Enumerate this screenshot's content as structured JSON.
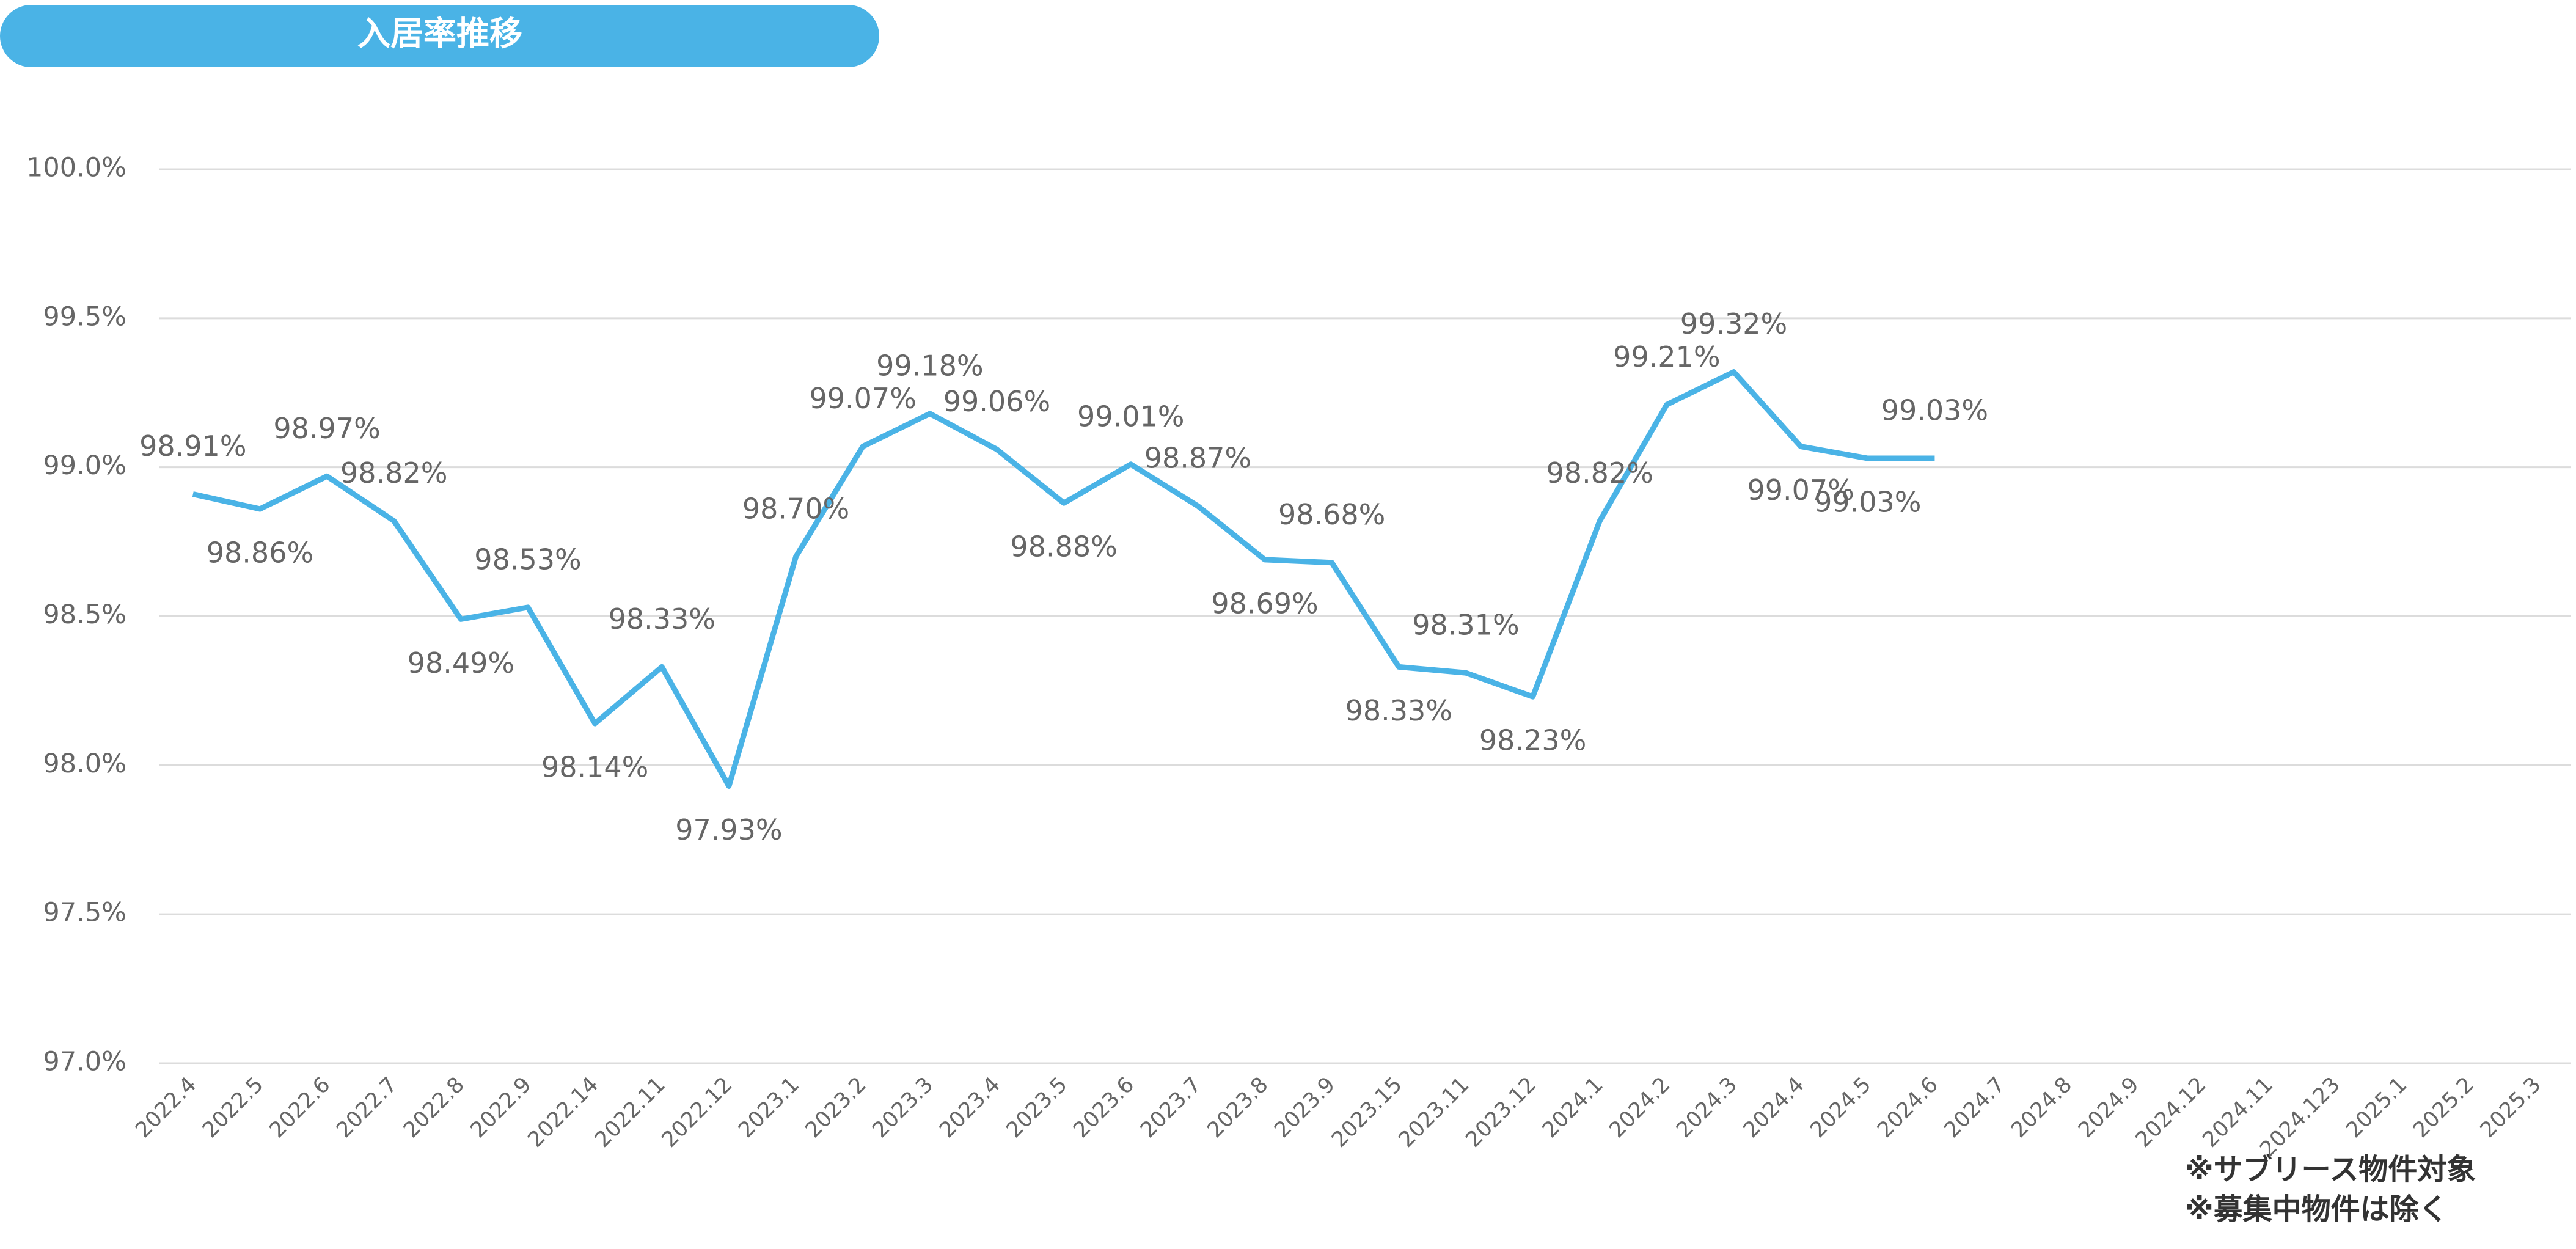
{
  "chart_data": {
    "type": "line",
    "title": "入居率推移",
    "categories": [
      "2022.4",
      "2022.5",
      "2022.6",
      "2022.7",
      "2022.8",
      "2022.9",
      "2022.14",
      "2022.11",
      "2022.12",
      "2023.1",
      "2023.2",
      "2023.3",
      "2023.4",
      "2023.5",
      "2023.6",
      "2023.7",
      "2023.8",
      "2023.9",
      "2023.15",
      "2023.11",
      "2023.12",
      "2024.1",
      "2024.2",
      "2024.3",
      "2024.4",
      "2024.5",
      "2024.6",
      "2024.7",
      "2024.8",
      "2024.9",
      "2024.12",
      "2024.11",
      "2024.123",
      "2025.1",
      "2025.2",
      "2025.3"
    ],
    "series": [
      {
        "name": "入居率",
        "color": "#4ab3e6",
        "values": [
          98.91,
          98.86,
          98.97,
          98.82,
          98.49,
          98.53,
          98.14,
          98.33,
          97.93,
          98.7,
          99.07,
          99.18,
          99.06,
          98.88,
          99.01,
          98.87,
          98.69,
          98.68,
          98.33,
          98.31,
          98.23,
          98.82,
          99.21,
          99.32,
          99.07,
          99.03,
          99.03,
          null,
          null,
          null,
          null,
          null,
          null,
          null,
          null,
          null
        ],
        "value_labels": [
          "98.91%",
          "98.86%",
          "98.97%",
          "98.82%",
          "98.49%",
          "98.53%",
          "98.14%",
          "98.33%",
          "97.93%",
          "98.70%",
          "99.07%",
          "99.18%",
          "99.06%",
          "98.88%",
          "99.01%",
          "98.87%",
          "98.69%",
          "98.68%",
          "98.33%",
          "98.31%",
          "98.23%",
          "98.82%",
          "99.21%",
          "99.32%",
          "99.07%",
          "99.03%",
          "99.03%",
          null,
          null,
          null,
          null,
          null,
          null,
          null,
          null,
          null
        ]
      }
    ],
    "ylim": [
      97,
      100
    ],
    "yticks": [
      {
        "value": 97,
        "label": "97.0%"
      },
      {
        "value": 97.5,
        "label": "97.5%"
      },
      {
        "value": 98,
        "label": "98.0%"
      },
      {
        "value": 98.5,
        "label": "98.5%"
      },
      {
        "value": 99,
        "label": "99.0%"
      },
      {
        "value": 99.5,
        "label": "99.5%"
      },
      {
        "value": 100,
        "label": "100.0%"
      }
    ],
    "grid": true,
    "annotations": [
      "※サブリース物件対象",
      "※募集中物件は除く"
    ]
  }
}
